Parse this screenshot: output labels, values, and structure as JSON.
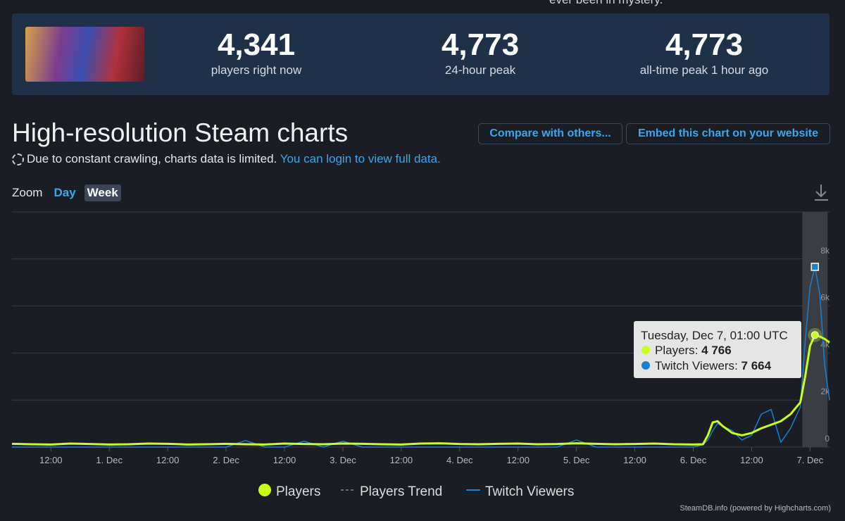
{
  "header_clip": "ever been in mystery.",
  "stats": [
    {
      "value": "4,341",
      "label": "players right now"
    },
    {
      "value": "4,773",
      "label": "24-hour peak"
    },
    {
      "value": "4,773",
      "label": "all-time peak 1 hour ago"
    }
  ],
  "section_title": "High-resolution Steam charts",
  "buttons": [
    "Compare with others...",
    "Embed this chart on your website"
  ],
  "notice": {
    "text": "Due to constant crawling, charts data is limited.",
    "link": "You can login to view full data."
  },
  "zoom": {
    "label": "Zoom",
    "options": [
      "Day",
      "Week"
    ]
  },
  "credit": "SteamDB.info (powered by Highcharts.com)",
  "chart_data": {
    "type": "line",
    "x": [
      0,
      4,
      8,
      12,
      16,
      20,
      24,
      28,
      32,
      36,
      40,
      44,
      48,
      52,
      56,
      60,
      64,
      68,
      72,
      76,
      80,
      84,
      88,
      92,
      96,
      100,
      104,
      108,
      112,
      116,
      120,
      124,
      128,
      132,
      136,
      140,
      142,
      143,
      144,
      145,
      146,
      148,
      150,
      152,
      154,
      156,
      158,
      160,
      162,
      163,
      164,
      165,
      166,
      167,
      168
    ],
    "series": [
      {
        "name": "Players",
        "color": "#c8ff1a",
        "values": [
          140,
          120,
          110,
          150,
          130,
          110,
          120,
          150,
          140,
          110,
          120,
          140,
          120,
          110,
          150,
          130,
          120,
          150,
          140,
          120,
          110,
          150,
          160,
          130,
          120,
          140,
          150,
          120,
          130,
          160,
          140,
          120,
          130,
          150,
          120,
          110,
          120,
          500,
          1050,
          1100,
          900,
          600,
          500,
          600,
          800,
          950,
          1100,
          1400,
          1900,
          3000,
          4300,
          4766,
          4700,
          4600,
          4450
        ]
      },
      {
        "name": "Twitch Viewers",
        "color": "#1a7fd0",
        "values": [
          0,
          0,
          0,
          0,
          0,
          0,
          0,
          0,
          0,
          0,
          0,
          0,
          280,
          0,
          0,
          250,
          0,
          250,
          0,
          0,
          0,
          0,
          0,
          0,
          0,
          0,
          0,
          0,
          0,
          300,
          0,
          0,
          0,
          0,
          0,
          0,
          100,
          300,
          700,
          1000,
          900,
          700,
          300,
          500,
          1400,
          1600,
          200,
          800,
          1700,
          4500,
          6800,
          7664,
          6500,
          3500,
          2000
        ]
      }
    ],
    "trend_name": "Players Trend",
    "xlim": [
      0,
      168
    ],
    "xticks": [
      {
        "value": 8,
        "label": "12:00"
      },
      {
        "value": 20,
        "label": "1. Dec"
      },
      {
        "value": 32,
        "label": "12:00"
      },
      {
        "value": 44,
        "label": "2. Dec"
      },
      {
        "value": 56,
        "label": "12:00"
      },
      {
        "value": 68,
        "label": "3. Dec"
      },
      {
        "value": 80,
        "label": "12:00"
      },
      {
        "value": 92,
        "label": "4. Dec"
      },
      {
        "value": 104,
        "label": "12:00"
      },
      {
        "value": 116,
        "label": "5. Dec"
      },
      {
        "value": 128,
        "label": "12:00"
      },
      {
        "value": 140,
        "label": "6. Dec"
      },
      {
        "value": 152,
        "label": "12:00"
      },
      {
        "value": 164,
        "label": "7. Dec"
      }
    ],
    "ylim": [
      0,
      10000
    ],
    "yticks": [
      0,
      {
        "value": 2000,
        "label": "2k"
      },
      {
        "value": 4000,
        "label": "4k"
      },
      {
        "value": 6000,
        "label": "6k"
      },
      {
        "value": 8000,
        "label": "8k"
      }
    ],
    "grid": true,
    "tooltip": {
      "index": 51,
      "title": "Tuesday, Dec 7, 01:00 UTC",
      "value_labels": [
        "4 766",
        "7 664"
      ]
    }
  }
}
